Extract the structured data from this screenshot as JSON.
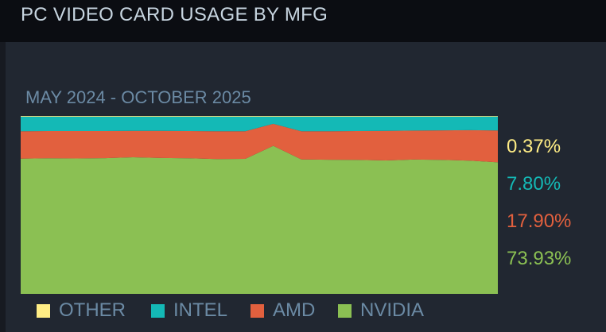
{
  "header": {
    "title": "PC VIDEO CARD USAGE BY MFG"
  },
  "chart_data": {
    "type": "area",
    "stacked": true,
    "title": "MAY 2024 - OCTOBER 2025",
    "xlabel": "",
    "ylabel": "",
    "ylim": [
      0,
      100
    ],
    "grid": false,
    "legend_position": "bottom",
    "x": [
      "2024-05",
      "2024-06",
      "2024-07",
      "2024-08",
      "2024-09",
      "2024-10",
      "2024-11",
      "2024-12",
      "2025-01",
      "2025-02",
      "2025-03",
      "2025-04",
      "2025-05",
      "2025-06",
      "2025-07",
      "2025-08",
      "2025-09",
      "2025-10"
    ],
    "series": [
      {
        "name": "NVIDIA",
        "color": "#8bc053",
        "values": [
          76.0,
          76.2,
          76.1,
          76.3,
          76.8,
          76.4,
          76.2,
          75.8,
          75.9,
          83.2,
          75.6,
          75.4,
          75.3,
          75.0,
          75.5,
          75.3,
          74.9,
          73.93
        ]
      },
      {
        "name": "AMD",
        "color": "#e2603e",
        "values": [
          15.4,
          15.3,
          15.4,
          15.2,
          14.8,
          15.2,
          15.3,
          15.6,
          15.5,
          12.4,
          15.8,
          16.0,
          16.2,
          16.6,
          16.3,
          16.6,
          17.1,
          17.9
        ]
      },
      {
        "name": "INTEL",
        "color": "#14b9b6",
        "values": [
          8.2,
          8.1,
          8.1,
          8.1,
          8.0,
          8.0,
          8.1,
          8.2,
          8.2,
          4.0,
          8.2,
          8.2,
          8.1,
          8.0,
          7.8,
          7.7,
          7.6,
          7.8
        ]
      },
      {
        "name": "OTHER",
        "color": "#ffed85",
        "values": [
          0.4,
          0.4,
          0.4,
          0.4,
          0.4,
          0.4,
          0.4,
          0.4,
          0.4,
          0.4,
          0.4,
          0.4,
          0.4,
          0.4,
          0.4,
          0.4,
          0.4,
          0.37
        ]
      }
    ],
    "latest_labels": [
      {
        "series": "OTHER",
        "text": "0.37%",
        "color": "#ffed85"
      },
      {
        "series": "INTEL",
        "text": "7.80%",
        "color": "#14b9b6"
      },
      {
        "series": "AMD",
        "text": "17.90%",
        "color": "#e2603e"
      },
      {
        "series": "NVIDIA",
        "text": "73.93%",
        "color": "#8bc053"
      }
    ],
    "legend": [
      {
        "label": "OTHER",
        "color": "#ffed85"
      },
      {
        "label": "INTEL",
        "color": "#14b9b6"
      },
      {
        "label": "AMD",
        "color": "#e2603e"
      },
      {
        "label": "NVIDIA",
        "color": "#8bc053"
      }
    ]
  }
}
